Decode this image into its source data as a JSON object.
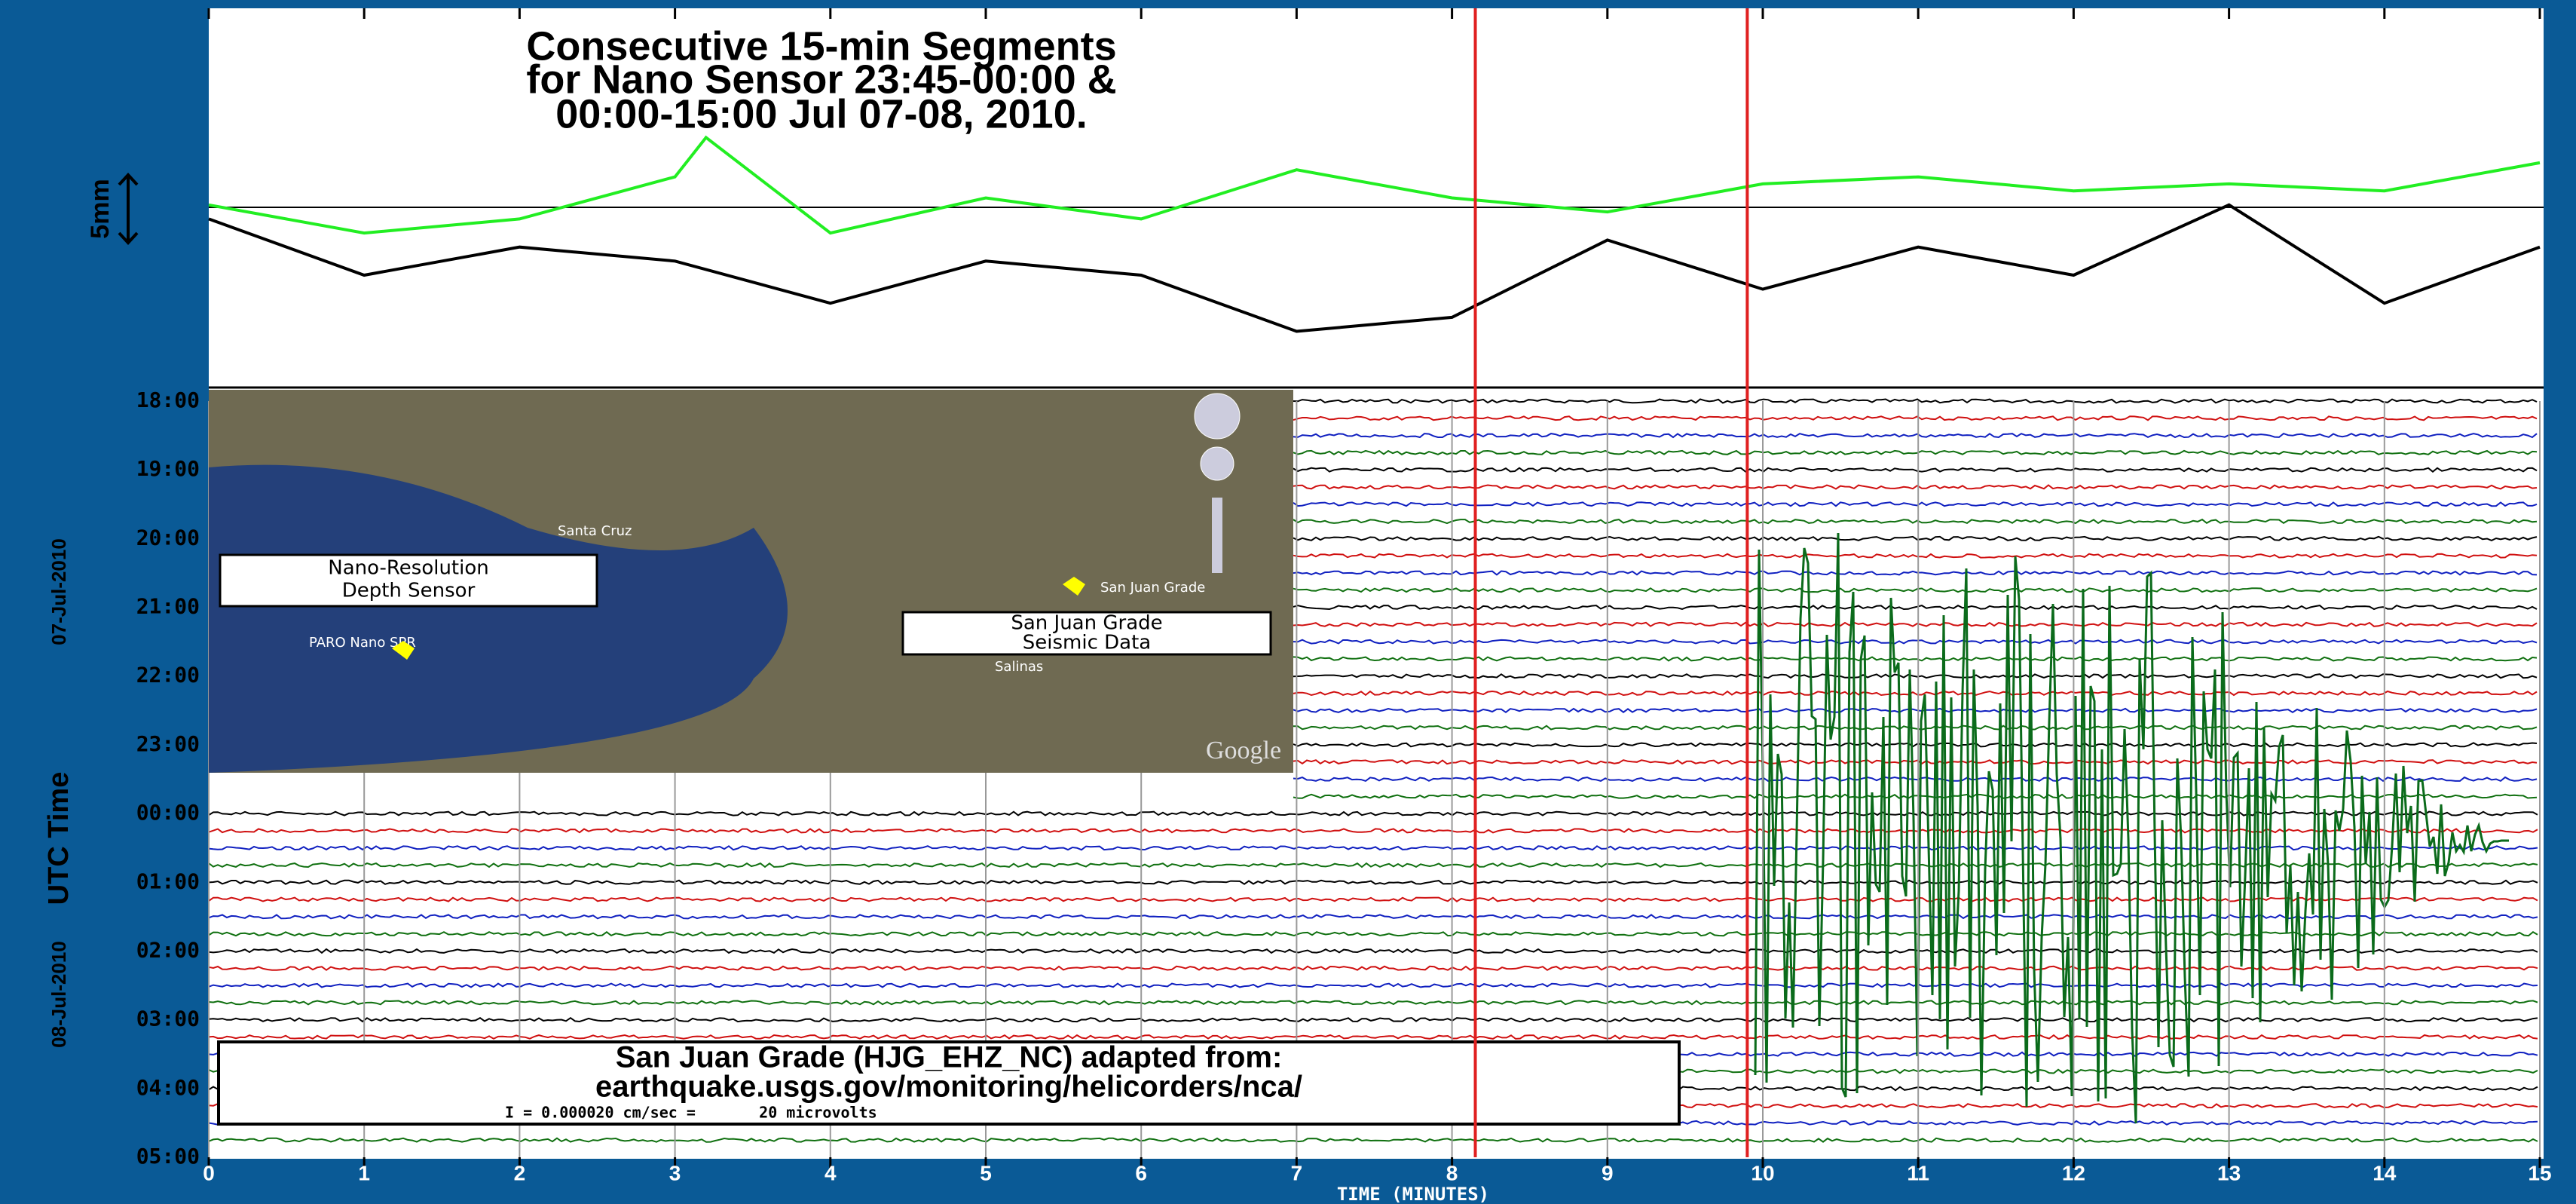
{
  "chart_data": {
    "type": "helicorder",
    "title_lines": [
      "Consecutive 15-min Segments",
      "for Nano Sensor 23:45-00:00 &",
      "00:00-15:00 Jul 07-08, 2010."
    ],
    "scale_label": "5mm",
    "y_label": "UTC Time",
    "date_labels": [
      "07-Jul-2010",
      "08-Jul-2010"
    ],
    "x_label": "TIME (MINUTES)",
    "xlim": [
      0,
      15
    ],
    "xticks": [
      0,
      1,
      2,
      3,
      4,
      5,
      6,
      7,
      8,
      9,
      10,
      11,
      12,
      13,
      14,
      15
    ],
    "ylim": [
      -13,
      14
    ],
    "rows": [
      "18:00",
      "19:00",
      "20:00",
      "21:00",
      "22:00",
      "23:00",
      "00:00",
      "01:00",
      "02:00",
      "03:00",
      "04:00",
      "05:00"
    ],
    "markers": {
      "color": "#e02020",
      "x": [
        8.15,
        9.9
      ]
    },
    "series": [
      {
        "color": "#22ee22",
        "x": [
          0,
          1,
          2,
          3,
          3.2,
          4,
          5,
          6,
          7,
          8,
          9,
          10,
          11,
          12,
          13,
          14,
          15
        ],
        "values": [
          0,
          -2,
          -1,
          2,
          4.8,
          -2,
          0.5,
          -1,
          2.5,
          0.5,
          -0.5,
          1.5,
          2,
          1,
          1.5,
          1,
          3
        ]
      },
      {
        "color": "#000000",
        "x": [
          0,
          1,
          2,
          3,
          4,
          5,
          6,
          7,
          8,
          9,
          10,
          11,
          12,
          13,
          14,
          15
        ],
        "values": [
          -1,
          -5,
          -3,
          -4,
          -7,
          -4,
          -5,
          -9,
          -8,
          -2.5,
          -6,
          -3,
          -5,
          0,
          -7,
          -3
        ]
      }
    ],
    "map": {
      "sensor_box": [
        "Nano-Resolution",
        "Depth Sensor"
      ],
      "seismic_box": [
        "San Juan Grade",
        "Seismic Data"
      ],
      "places": [
        "Santa Cruz",
        "PARO Nano SPR",
        "San Juan Grade",
        "Salinas"
      ],
      "brand": "Google"
    },
    "source_box": [
      "San Juan Grade (HJG_EHZ_NC) adapted from:",
      "earthquake.usgs.gov/monitoring/helicorders/nca/",
      "I = 0.000020 cm/sec =       20 microvolts"
    ]
  }
}
